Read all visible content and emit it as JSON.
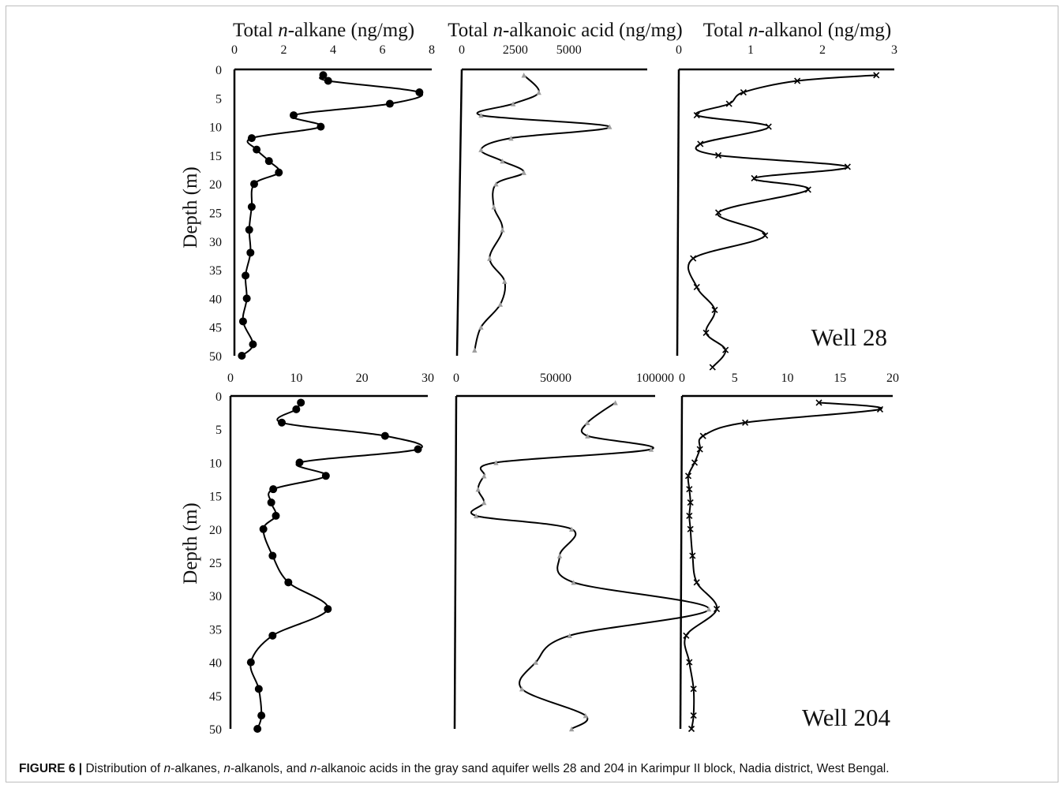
{
  "figure": {
    "caption_label": "FIGURE 6 |",
    "caption_parts": [
      {
        "t": " Distribution of ",
        "i": false
      },
      {
        "t": "n",
        "i": true
      },
      {
        "t": "-alkanes, ",
        "i": false
      },
      {
        "t": "n",
        "i": true
      },
      {
        "t": "-alkanols, and ",
        "i": false
      },
      {
        "t": "n",
        "i": true
      },
      {
        "t": "-alkanoic acids in the gray sand aquifer wells 28 and 204 in Karimpur II block, Nadia district, West Bengal.",
        "i": false
      }
    ],
    "column_titles": [
      [
        {
          "t": "Total ",
          "i": false
        },
        {
          "t": "n",
          "i": true
        },
        {
          "t": "-alkane (ng/mg)",
          "i": false
        }
      ],
      [
        {
          "t": "Total ",
          "i": false
        },
        {
          "t": "n",
          "i": true
        },
        {
          "t": "-alkanoic acid (ng/mg)",
          "i": false
        }
      ],
      [
        {
          "t": "Total ",
          "i": false
        },
        {
          "t": "n",
          "i": true
        },
        {
          "t": "-alkanol (ng/mg)",
          "i": false
        }
      ]
    ]
  },
  "chart_data": [
    {
      "type": "line",
      "panel": "Well 28",
      "ylabel": "Depth (m)",
      "yticks": [
        "0",
        "5",
        "10",
        "15",
        "20",
        "25",
        "30",
        "35",
        "40",
        "45",
        "50"
      ],
      "ylim": [
        0,
        50
      ],
      "y_inverted": true,
      "tracks": [
        {
          "xlim": [
            0,
            8
          ],
          "xticks": [
            "0",
            "2",
            "4",
            "6",
            "8"
          ],
          "marker": "circle",
          "series": [
            {
              "x": 3.6,
              "y": 1
            },
            {
              "x": 3.8,
              "y": 2
            },
            {
              "x": 7.5,
              "y": 4
            },
            {
              "x": 6.3,
              "y": 6
            },
            {
              "x": 2.4,
              "y": 8
            },
            {
              "x": 3.5,
              "y": 10
            },
            {
              "x": 0.7,
              "y": 12
            },
            {
              "x": 0.9,
              "y": 14
            },
            {
              "x": 1.4,
              "y": 16
            },
            {
              "x": 1.8,
              "y": 18
            },
            {
              "x": 0.8,
              "y": 20
            },
            {
              "x": 0.7,
              "y": 24
            },
            {
              "x": 0.6,
              "y": 28
            },
            {
              "x": 0.65,
              "y": 32
            },
            {
              "x": 0.45,
              "y": 36
            },
            {
              "x": 0.5,
              "y": 40
            },
            {
              "x": 0.35,
              "y": 44
            },
            {
              "x": 0.75,
              "y": 48
            },
            {
              "x": 0.3,
              "y": 50
            }
          ]
        },
        {
          "xlim": [
            0,
            7000
          ],
          "xticks": [
            "0",
            "2500",
            "5000"
          ],
          "marker": "triangle",
          "series": [
            {
              "x": 2900,
              "y": 1
            },
            {
              "x": 3600,
              "y": 4
            },
            {
              "x": 2400,
              "y": 6
            },
            {
              "x": 900,
              "y": 8
            },
            {
              "x": 6900,
              "y": 10
            },
            {
              "x": 2300,
              "y": 12
            },
            {
              "x": 900,
              "y": 14
            },
            {
              "x": 1900,
              "y": 16
            },
            {
              "x": 2900,
              "y": 18
            },
            {
              "x": 1600,
              "y": 20
            },
            {
              "x": 1500,
              "y": 24
            },
            {
              "x": 1900,
              "y": 28
            },
            {
              "x": 1300,
              "y": 33
            },
            {
              "x": 2000,
              "y": 37
            },
            {
              "x": 1800,
              "y": 41
            },
            {
              "x": 900,
              "y": 45
            },
            {
              "x": 600,
              "y": 49
            }
          ]
        },
        {
          "xlim": [
            0,
            3
          ],
          "xticks": [
            "0",
            "1",
            "2",
            "3"
          ],
          "marker": "x",
          "series": [
            {
              "x": 2.75,
              "y": 1
            },
            {
              "x": 1.65,
              "y": 2
            },
            {
              "x": 0.9,
              "y": 4
            },
            {
              "x": 0.7,
              "y": 6
            },
            {
              "x": 0.25,
              "y": 8
            },
            {
              "x": 1.25,
              "y": 10
            },
            {
              "x": 0.3,
              "y": 13
            },
            {
              "x": 0.55,
              "y": 15
            },
            {
              "x": 2.35,
              "y": 17
            },
            {
              "x": 1.05,
              "y": 19
            },
            {
              "x": 1.8,
              "y": 21
            },
            {
              "x": 0.55,
              "y": 25
            },
            {
              "x": 1.2,
              "y": 29
            },
            {
              "x": 0.2,
              "y": 33
            },
            {
              "x": 0.25,
              "y": 38
            },
            {
              "x": 0.5,
              "y": 42
            },
            {
              "x": 0.38,
              "y": 46
            },
            {
              "x": 0.65,
              "y": 49
            },
            {
              "x": 0.47,
              "y": 52
            }
          ]
        }
      ]
    },
    {
      "type": "line",
      "panel": "Well 204",
      "ylabel": "Depth (m)",
      "yticks": [
        "0",
        "5",
        "10",
        "15",
        "20",
        "25",
        "30",
        "35",
        "40",
        "45",
        "50"
      ],
      "ylim": [
        0,
        50
      ],
      "y_inverted": true,
      "tracks": [
        {
          "xlim": [
            0,
            30
          ],
          "xticks": [
            "0",
            "10",
            "20",
            "30"
          ],
          "marker": "circle",
          "series": [
            {
              "x": 10.7,
              "y": 1
            },
            {
              "x": 10,
              "y": 2
            },
            {
              "x": 7.8,
              "y": 4
            },
            {
              "x": 23.5,
              "y": 6
            },
            {
              "x": 28.5,
              "y": 8
            },
            {
              "x": 10.5,
              "y": 10
            },
            {
              "x": 14.5,
              "y": 12
            },
            {
              "x": 6.5,
              "y": 14
            },
            {
              "x": 6.2,
              "y": 16
            },
            {
              "x": 6.9,
              "y": 18
            },
            {
              "x": 5,
              "y": 20
            },
            {
              "x": 6.4,
              "y": 24
            },
            {
              "x": 8.8,
              "y": 28
            },
            {
              "x": 14.8,
              "y": 32
            },
            {
              "x": 6.4,
              "y": 36
            },
            {
              "x": 3.1,
              "y": 40
            },
            {
              "x": 4.3,
              "y": 44
            },
            {
              "x": 4.7,
              "y": 48
            },
            {
              "x": 4.1,
              "y": 50
            }
          ]
        },
        {
          "xlim": [
            0,
            100000
          ],
          "xticks": [
            "0",
            "50000",
            "100000"
          ],
          "marker": "triangle",
          "series": [
            {
              "x": 80000,
              "y": 1
            },
            {
              "x": 66000,
              "y": 4
            },
            {
              "x": 66000,
              "y": 6
            },
            {
              "x": 98000,
              "y": 8
            },
            {
              "x": 20000,
              "y": 10
            },
            {
              "x": 14000,
              "y": 12
            },
            {
              "x": 11000,
              "y": 14
            },
            {
              "x": 14000,
              "y": 16
            },
            {
              "x": 10000,
              "y": 18
            },
            {
              "x": 58000,
              "y": 20
            },
            {
              "x": 52000,
              "y": 24
            },
            {
              "x": 59000,
              "y": 28
            },
            {
              "x": 127000,
              "y": 32
            },
            {
              "x": 57000,
              "y": 36
            },
            {
              "x": 40000,
              "y": 40
            },
            {
              "x": 33000,
              "y": 44
            },
            {
              "x": 65000,
              "y": 48
            },
            {
              "x": 58000,
              "y": 50
            }
          ]
        },
        {
          "xlim": [
            0,
            20
          ],
          "xticks": [
            "0",
            "5",
            "10",
            "15",
            "20"
          ],
          "marker": "x",
          "series": [
            {
              "x": 13,
              "y": 1
            },
            {
              "x": 18.8,
              "y": 2
            },
            {
              "x": 6,
              "y": 4
            },
            {
              "x": 2,
              "y": 6
            },
            {
              "x": 1.7,
              "y": 8
            },
            {
              "x": 1.2,
              "y": 10
            },
            {
              "x": 0.6,
              "y": 12
            },
            {
              "x": 0.7,
              "y": 14
            },
            {
              "x": 0.8,
              "y": 16
            },
            {
              "x": 0.7,
              "y": 18
            },
            {
              "x": 0.8,
              "y": 20
            },
            {
              "x": 1,
              "y": 24
            },
            {
              "x": 1.4,
              "y": 28
            },
            {
              "x": 3.3,
              "y": 32
            },
            {
              "x": 0.4,
              "y": 36
            },
            {
              "x": 0.7,
              "y": 40
            },
            {
              "x": 1.1,
              "y": 44
            },
            {
              "x": 1.1,
              "y": 48
            },
            {
              "x": 0.9,
              "y": 50
            }
          ]
        }
      ]
    }
  ]
}
